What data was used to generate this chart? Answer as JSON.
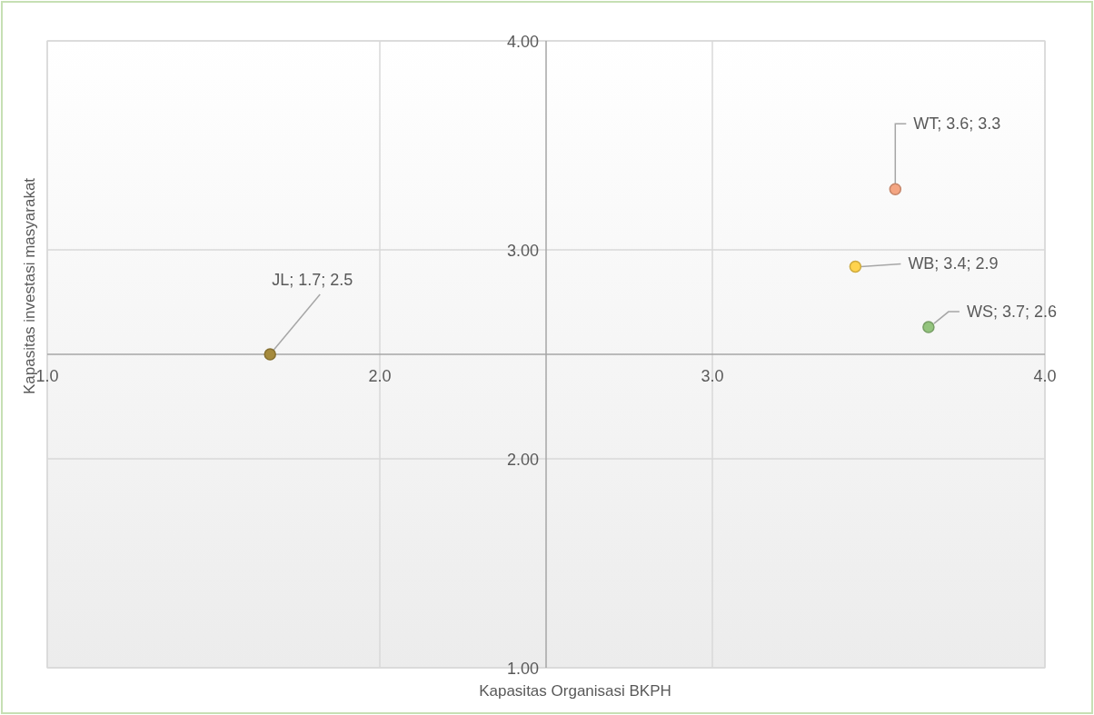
{
  "chart_data": {
    "type": "scatter",
    "xlabel": "Kapasitas Organisasi BKPH",
    "ylabel": "Kapasitas investasi masyarakat",
    "x": [
      1.67,
      3.55,
      3.43,
      3.65
    ],
    "values": [
      2.5,
      3.29,
      2.92,
      2.63
    ],
    "colors": [
      "#a58a3c",
      "#f4a582",
      "#ffd34d",
      "#93c47d"
    ],
    "value_labels": [
      "JL; 1.7; 2.5",
      "WT; 3.6; 3.3",
      "WB; 3.4; 2.9",
      "WS; 3.7; 2.6"
    ],
    "xlim": [
      1,
      4
    ],
    "ylim": [
      1,
      4
    ],
    "xticks": [
      {
        "value": 1,
        "label": "1.0"
      },
      {
        "value": 2,
        "label": "2.0"
      },
      {
        "value": 3,
        "label": "3.0"
      },
      {
        "value": 4,
        "label": "4.0"
      }
    ],
    "yticks": [
      {
        "value": 1,
        "label": "1.00"
      },
      {
        "value": 2,
        "label": "2.00"
      },
      {
        "value": 3,
        "label": "3.00"
      },
      {
        "value": 4,
        "label": "4.00"
      }
    ],
    "grid": true,
    "marker": "circle"
  }
}
